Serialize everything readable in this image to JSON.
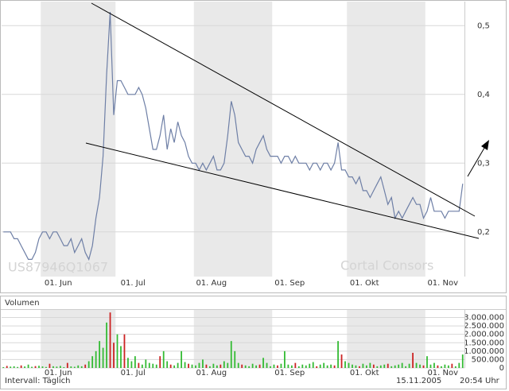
{
  "chart_data": [
    {
      "type": "line",
      "color": "#6e7fa6",
      "band_color": "#e9e9e9",
      "grid": true,
      "ylim": [
        0.135,
        0.535
      ],
      "yticks": [
        {
          "value": 0.2,
          "label": "0,2"
        },
        {
          "value": 0.3,
          "label": "0,3"
        },
        {
          "value": 0.4,
          "label": "0,4"
        },
        {
          "value": 0.5,
          "label": "0,5"
        }
      ],
      "categories": [
        null,
        null,
        null,
        null,
        null,
        null,
        null,
        null,
        null,
        null,
        null,
        "01. Jun",
        null,
        null,
        null,
        null,
        null,
        null,
        null,
        null,
        null,
        null,
        null,
        null,
        null,
        null,
        null,
        null,
        null,
        null,
        null,
        null,
        "01. Jul",
        null,
        null,
        null,
        null,
        null,
        null,
        null,
        null,
        null,
        null,
        null,
        null,
        null,
        null,
        null,
        null,
        null,
        null,
        null,
        null,
        null,
        "01. Aug",
        null,
        null,
        null,
        null,
        null,
        null,
        null,
        null,
        null,
        null,
        null,
        null,
        null,
        null,
        null,
        null,
        null,
        null,
        null,
        null,
        null,
        "01. Sep",
        null,
        null,
        null,
        null,
        null,
        null,
        null,
        null,
        null,
        null,
        null,
        null,
        null,
        null,
        null,
        null,
        null,
        null,
        null,
        null,
        "01. Okt",
        null,
        null,
        null,
        null,
        null,
        null,
        null,
        null,
        null,
        null,
        null,
        null,
        null,
        null,
        null,
        null,
        null,
        null,
        null,
        null,
        null,
        "01. Nov",
        null,
        null,
        null,
        null,
        null,
        null,
        null,
        null,
        null,
        null
      ],
      "values": [
        0.2,
        0.2,
        0.2,
        0.19,
        0.19,
        0.18,
        0.17,
        0.16,
        0.16,
        0.17,
        0.19,
        0.2,
        0.2,
        0.19,
        0.2,
        0.2,
        0.19,
        0.18,
        0.18,
        0.19,
        0.17,
        0.18,
        0.19,
        0.17,
        0.16,
        0.18,
        0.22,
        0.25,
        0.31,
        0.43,
        0.52,
        0.37,
        0.42,
        0.42,
        0.41,
        0.4,
        0.4,
        0.4,
        0.41,
        0.4,
        0.38,
        0.35,
        0.32,
        0.32,
        0.34,
        0.37,
        0.32,
        0.35,
        0.33,
        0.36,
        0.34,
        0.33,
        0.31,
        0.3,
        0.3,
        0.29,
        0.3,
        0.29,
        0.3,
        0.31,
        0.29,
        0.29,
        0.3,
        0.34,
        0.39,
        0.37,
        0.33,
        0.32,
        0.31,
        0.31,
        0.3,
        0.32,
        0.33,
        0.34,
        0.32,
        0.31,
        0.31,
        0.31,
        0.3,
        0.31,
        0.31,
        0.3,
        0.31,
        0.3,
        0.3,
        0.3,
        0.29,
        0.3,
        0.3,
        0.29,
        0.3,
        0.3,
        0.29,
        0.3,
        0.33,
        0.29,
        0.29,
        0.28,
        0.28,
        0.27,
        0.28,
        0.26,
        0.26,
        0.25,
        0.26,
        0.27,
        0.28,
        0.26,
        0.24,
        0.25,
        0.22,
        0.23,
        0.22,
        0.23,
        0.24,
        0.25,
        0.24,
        0.24,
        0.22,
        0.23,
        0.25,
        0.23,
        0.23,
        0.23,
        0.22,
        0.23,
        0.23,
        0.23,
        0.23,
        0.27
      ]
    },
    {
      "type": "bar",
      "title": "Volumen",
      "band_color": "#e9e9e9",
      "grid": true,
      "ylim": [
        0,
        3450000
      ],
      "yticks": [
        0,
        {
          "value": 500000,
          "label": "500.000"
        },
        {
          "value": 1000000,
          "label": "1.000.000"
        },
        {
          "value": 1500000,
          "label": "1.500.000"
        },
        {
          "value": 2000000,
          "label": "2.000.000"
        },
        {
          "value": 2500000,
          "label": "2.500.000"
        },
        {
          "value": 3000000,
          "label": "3.000.000"
        }
      ],
      "categories": [
        null,
        null,
        null,
        null,
        null,
        null,
        null,
        null,
        null,
        null,
        null,
        "01. Jun",
        null,
        null,
        null,
        null,
        null,
        null,
        null,
        null,
        null,
        null,
        null,
        null,
        null,
        null,
        null,
        null,
        null,
        null,
        null,
        null,
        "01. Jul",
        null,
        null,
        null,
        null,
        null,
        null,
        null,
        null,
        null,
        null,
        null,
        null,
        null,
        null,
        null,
        null,
        null,
        null,
        null,
        null,
        null,
        "01. Aug",
        null,
        null,
        null,
        null,
        null,
        null,
        null,
        null,
        null,
        null,
        null,
        null,
        null,
        null,
        null,
        null,
        null,
        null,
        null,
        null,
        null,
        "01. Sep",
        null,
        null,
        null,
        null,
        null,
        null,
        null,
        null,
        null,
        null,
        null,
        null,
        null,
        null,
        null,
        null,
        null,
        null,
        null,
        null,
        "01. Okt",
        null,
        null,
        null,
        null,
        null,
        null,
        null,
        null,
        null,
        null,
        null,
        null,
        null,
        null,
        null,
        null,
        null,
        null,
        null,
        null,
        null,
        "01. Nov",
        null,
        null,
        null,
        null,
        null,
        null,
        null,
        null,
        null,
        null
      ],
      "values": [
        50000,
        120000,
        80000,
        100000,
        60000,
        150000,
        90000,
        200000,
        70000,
        110000,
        130000,
        90000,
        60000,
        250000,
        100000,
        80000,
        120000,
        50000,
        300000,
        90000,
        70000,
        150000,
        100000,
        200000,
        400000,
        700000,
        1000000,
        1600000,
        1200000,
        2700000,
        3300000,
        1500000,
        2000000,
        1300000,
        2000000,
        600000,
        400000,
        700000,
        300000,
        200000,
        500000,
        300000,
        250000,
        200000,
        700000,
        1000000,
        400000,
        200000,
        150000,
        300000,
        1000000,
        350000,
        250000,
        200000,
        150000,
        300000,
        500000,
        200000,
        100000,
        250000,
        150000,
        200000,
        400000,
        300000,
        1600000,
        1000000,
        300000,
        200000,
        150000,
        100000,
        250000,
        150000,
        200000,
        600000,
        300000,
        100000,
        200000,
        150000,
        250000,
        1000000,
        200000,
        150000,
        300000,
        100000,
        200000,
        150000,
        250000,
        350000,
        100000,
        200000,
        300000,
        150000,
        200000,
        150000,
        1600000,
        800000,
        400000,
        300000,
        200000,
        150000,
        100000,
        250000,
        150000,
        300000,
        200000,
        100000,
        150000,
        200000,
        250000,
        100000,
        150000,
        200000,
        300000,
        100000,
        250000,
        900000,
        300000,
        200000,
        150000,
        700000,
        200000,
        300000,
        150000,
        100000,
        200000,
        150000,
        250000,
        100000,
        300000,
        800000
      ],
      "colors": [
        "#3b3",
        "#c22",
        "#3b3",
        "#3b3",
        "#3b3",
        "#c22",
        "#3b3",
        "#3b3",
        "#3b3",
        "#c22",
        "#3b3",
        "#3b3",
        "#3b3",
        "#c22",
        "#3b3",
        "#3b3",
        "#3b3",
        "#3b3",
        "#c22",
        "#3b3",
        "#3b3",
        "#3b3",
        "#3b3",
        "#c22",
        "#3b3",
        "#3b3",
        "#3b3",
        "#3b3",
        "#3b3",
        "#3b3",
        "#c22",
        "#c22",
        "#3b3",
        "#3b3",
        "#c22",
        "#3b3",
        "#3b3",
        "#3b3",
        "#c22",
        "#3b3",
        "#3b3",
        "#3b3",
        "#3b3",
        "#3b3",
        "#c22",
        "#3b3",
        "#3b3",
        "#c22",
        "#3b3",
        "#3b3",
        "#3b3",
        "#3b3",
        "#c22",
        "#3b3",
        "#3b3",
        "#3b3",
        "#3b3",
        "#c22",
        "#3b3",
        "#3b3",
        "#3b3",
        "#c22",
        "#3b3",
        "#3b3",
        "#3b3",
        "#3b3",
        "#3b3",
        "#c22",
        "#3b3",
        "#3b3",
        "#3b3",
        "#3b3",
        "#c22",
        "#3b3",
        "#3b3",
        "#3b3",
        "#3b3",
        "#c22",
        "#3b3",
        "#3b3",
        "#3b3",
        "#3b3",
        "#c22",
        "#3b3",
        "#3b3",
        "#3b3",
        "#3b3",
        "#3b3",
        "#c22",
        "#3b3",
        "#3b3",
        "#3b3",
        "#3b3",
        "#c22",
        "#3b3",
        "#c22",
        "#3b3",
        "#3b3",
        "#3b3",
        "#3b3",
        "#c22",
        "#3b3",
        "#3b3",
        "#3b3",
        "#c22",
        "#3b3",
        "#3b3",
        "#3b3",
        "#c22",
        "#3b3",
        "#3b3",
        "#3b3",
        "#3b3",
        "#3b3",
        "#3b3",
        "#c22",
        "#3b3",
        "#3b3",
        "#c22",
        "#3b3",
        "#3b3",
        "#3b3",
        "#c22",
        "#3b3",
        "#3b3",
        "#3b3",
        "#c22",
        "#3b3",
        "#3b3",
        "#3b3"
      ]
    }
  ],
  "watermarks": [
    "US87946Q1067",
    "Cortal Consors"
  ],
  "footer": {
    "interval": "Intervall: Täglich",
    "date": "15.11.2005",
    "time": "20:54 Uhr"
  }
}
